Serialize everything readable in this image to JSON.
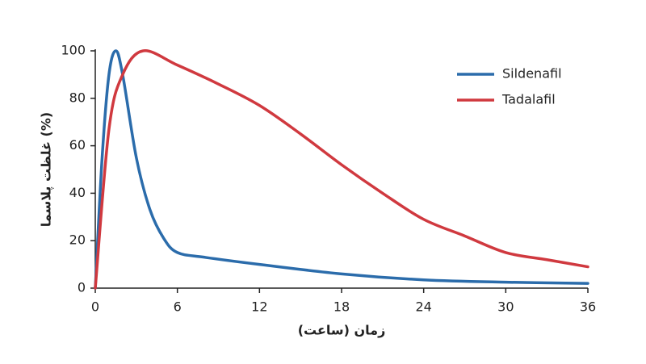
{
  "chart_data": {
    "type": "line",
    "xlabel": "زمان (ساعت)",
    "ylabel": "غلظت پلاسما (%)",
    "xlim": [
      0,
      36
    ],
    "xticks": [
      0,
      6,
      12,
      18,
      24,
      30,
      36
    ],
    "ylim": [
      0,
      100
    ],
    "yticks": [
      0,
      20,
      40,
      60,
      80,
      100
    ],
    "legend": "upper right",
    "series": [
      {
        "name": "Sildenafil",
        "color": "#2b6cab",
        "x": [
          0,
          0.5,
          1,
          1.5,
          2,
          3,
          4,
          5,
          6,
          8,
          12,
          18,
          24,
          30,
          36
        ],
        "values": [
          0,
          55,
          90,
          100,
          90,
          55,
          33,
          21,
          15,
          13,
          10,
          6,
          3.5,
          2.5,
          2
        ]
      },
      {
        "name": "Tadalafil",
        "color": "#d0393f",
        "x": [
          0,
          1,
          2,
          3.5,
          6,
          9,
          12,
          15,
          18,
          21,
          24,
          27,
          30,
          33,
          36
        ],
        "values": [
          0,
          67,
          90,
          100,
          94,
          86,
          77,
          65,
          52,
          40,
          29,
          22,
          15,
          12,
          9
        ]
      }
    ]
  }
}
